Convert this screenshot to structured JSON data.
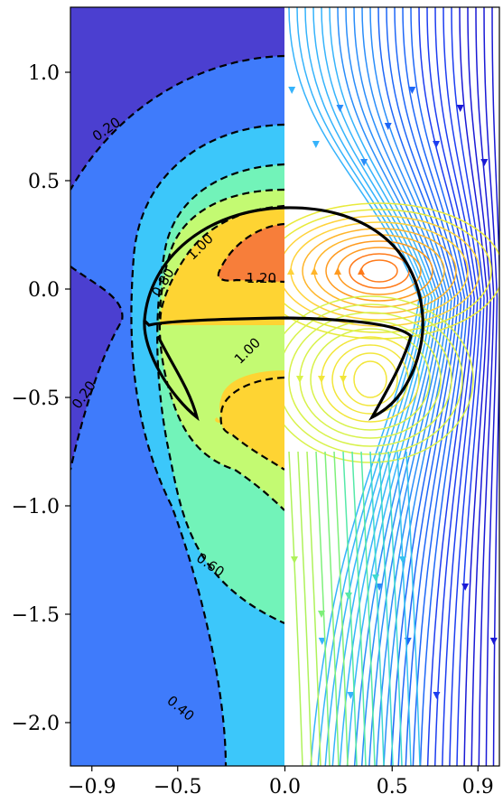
{
  "chart_data": {
    "type": "contour",
    "title": "",
    "xlabel": "",
    "ylabel": "",
    "xlim": [
      -1.0,
      1.0
    ],
    "ylim": [
      -2.2,
      1.3
    ],
    "x_ticks": [
      {
        "value": -0.9,
        "label": "−0.9"
      },
      {
        "value": -0.5,
        "label": "−0.5"
      },
      {
        "value": 0.0,
        "label": "0.0"
      },
      {
        "value": 0.5,
        "label": "0.5"
      },
      {
        "value": 0.9,
        "label": "0.9"
      }
    ],
    "y_ticks": [
      {
        "value": 1.0,
        "label": "1.0"
      },
      {
        "value": 0.5,
        "label": "0.5"
      },
      {
        "value": 0.0,
        "label": "0.0"
      },
      {
        "value": -0.5,
        "label": "−0.5"
      },
      {
        "value": -1.0,
        "label": "−1.0"
      },
      {
        "value": -1.5,
        "label": "−1.5"
      },
      {
        "value": -2.0,
        "label": "−2.0"
      }
    ],
    "contour_labels": [
      {
        "text": "0.20",
        "x": -0.82,
        "y": 0.72
      },
      {
        "text": "0.20",
        "x": -0.92,
        "y": -0.5
      },
      {
        "text": "0.40",
        "x": -0.5,
        "y": -1.95
      },
      {
        "text": "0.60",
        "x": -0.36,
        "y": -1.29
      },
      {
        "text": "0.80",
        "x": -0.55,
        "y": 0.02
      },
      {
        "text": "1.00",
        "x": -0.38,
        "y": 0.18
      },
      {
        "text": "1.00",
        "x": -0.16,
        "y": -0.3
      },
      {
        "text": "1.20",
        "x": -0.11,
        "y": 0.03
      }
    ],
    "fill_colors": [
      "#4b3fd0",
      "#3f7bfb",
      "#3cc7fa",
      "#72f3b9",
      "#c3fa72",
      "#fed433",
      "#f77e3a"
    ],
    "left_half": "filled contours with dashed isolines",
    "right_half": "streamlines with direction arrows, coloured by magnitude",
    "interface": "solid black double-lobed bubble outline"
  }
}
